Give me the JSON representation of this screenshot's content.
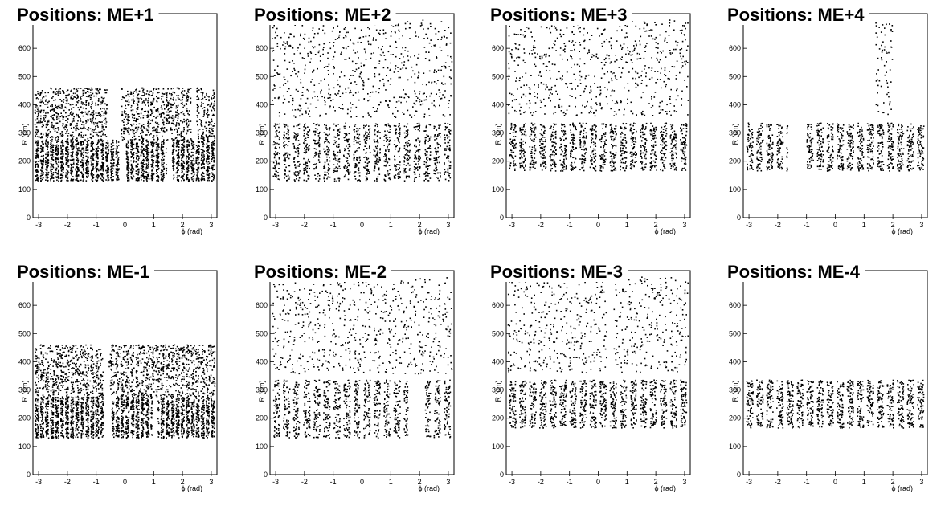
{
  "figure": {
    "background": "#ffffff",
    "marker_color": "#000000"
  },
  "chart_data": [
    {
      "type": "scatter",
      "title": "Positions: ME+1",
      "xlabel": "ϕ (rad)",
      "ylabel": "R (cm)",
      "xlim": [
        -3.14159,
        3.14159
      ],
      "ylim": [
        0,
        700
      ],
      "xticks": [
        -3,
        -2,
        -1,
        0,
        1,
        2,
        3
      ],
      "yticks": [
        0,
        100,
        200,
        300,
        400,
        500,
        600
      ],
      "rings": [
        {
          "rmin": 130,
          "rmax": 275,
          "nchambers": 36,
          "phi_gaps": [
            [
              -0.2,
              0.05
            ],
            [
              1.45,
              1.65
            ]
          ]
        },
        {
          "rmin": 275,
          "rmax": 460,
          "nchambers": 36,
          "phi_gaps": [
            [
              -0.62,
              -0.12
            ],
            [
              2.3,
              2.5
            ]
          ]
        }
      ]
    },
    {
      "type": "scatter",
      "title": "Positions: ME+2",
      "xlabel": "ϕ (rad)",
      "ylabel": "R (cm)",
      "xlim": [
        -3.14159,
        3.14159
      ],
      "ylim": [
        0,
        700
      ],
      "xticks": [
        -3,
        -2,
        -1,
        0,
        1,
        2,
        3
      ],
      "yticks": [
        0,
        100,
        200,
        300,
        400,
        500,
        600
      ],
      "rings": [
        {
          "rmin": 130,
          "rmax": 335,
          "nchambers": 18,
          "phi_gaps": []
        },
        {
          "rmin": 355,
          "rmax": 700,
          "nchambers": 36,
          "phi_gaps": []
        }
      ]
    },
    {
      "type": "scatter",
      "title": "Positions: ME+3",
      "xlabel": "ϕ (rad)",
      "ylabel": "R (cm)",
      "xlim": [
        -3.14159,
        3.14159
      ],
      "ylim": [
        0,
        700
      ],
      "xticks": [
        -3,
        -2,
        -1,
        0,
        1,
        2,
        3
      ],
      "yticks": [
        0,
        100,
        200,
        300,
        400,
        500,
        600
      ],
      "rings": [
        {
          "rmin": 165,
          "rmax": 335,
          "nchambers": 18,
          "phi_gaps": []
        },
        {
          "rmin": 360,
          "rmax": 700,
          "nchambers": 36,
          "phi_gaps": []
        }
      ]
    },
    {
      "type": "scatter",
      "title": "Positions: ME+4",
      "xlabel": "ϕ (rad)",
      "ylabel": "R (cm)",
      "xlim": [
        -3.14159,
        3.14159
      ],
      "ylim": [
        0,
        700
      ],
      "xticks": [
        -3,
        -2,
        -1,
        0,
        1,
        2,
        3
      ],
      "yticks": [
        0,
        100,
        200,
        300,
        400,
        500,
        600
      ],
      "rings": [
        {
          "rmin": 165,
          "rmax": 335,
          "nchambers": 18,
          "phi_gaps": [
            [
              -1.65,
              -1.05
            ]
          ]
        },
        {
          "rmin": 360,
          "rmax": 700,
          "nchambers": 36,
          "phi_gaps": [],
          "phi_range": [
            1.4,
            2.0
          ]
        }
      ]
    },
    {
      "type": "scatter",
      "title": "Positions: ME-1",
      "xlabel": "ϕ (rad)",
      "ylabel": "R (cm)",
      "xlim": [
        -3.14159,
        3.14159
      ],
      "ylim": [
        0,
        700
      ],
      "xticks": [
        -3,
        -2,
        -1,
        0,
        1,
        2,
        3
      ],
      "yticks": [
        0,
        100,
        200,
        300,
        400,
        500,
        600
      ],
      "rings": [
        {
          "rmin": 130,
          "rmax": 275,
          "nchambers": 36,
          "phi_gaps": [
            [
              -0.75,
              -0.45
            ],
            [
              0.95,
              1.15
            ]
          ]
        },
        {
          "rmin": 275,
          "rmax": 460,
          "nchambers": 36,
          "phi_gaps": [
            [
              -0.75,
              -0.55
            ]
          ]
        }
      ]
    },
    {
      "type": "scatter",
      "title": "Positions: ME-2",
      "xlabel": "ϕ (rad)",
      "ylabel": "R (cm)",
      "xlim": [
        -3.14159,
        3.14159
      ],
      "ylim": [
        0,
        700
      ],
      "xticks": [
        -3,
        -2,
        -1,
        0,
        1,
        2,
        3
      ],
      "yticks": [
        0,
        100,
        200,
        300,
        400,
        500,
        600
      ],
      "rings": [
        {
          "rmin": 130,
          "rmax": 335,
          "nchambers": 18,
          "phi_gaps": [
            [
              1.6,
              2.2
            ]
          ]
        },
        {
          "rmin": 355,
          "rmax": 700,
          "nchambers": 36,
          "phi_gaps": []
        }
      ]
    },
    {
      "type": "scatter",
      "title": "Positions: ME-3",
      "xlabel": "ϕ (rad)",
      "ylabel": "R (cm)",
      "xlim": [
        -3.14159,
        3.14159
      ],
      "ylim": [
        0,
        700
      ],
      "xticks": [
        -3,
        -2,
        -1,
        0,
        1,
        2,
        3
      ],
      "yticks": [
        0,
        100,
        200,
        300,
        400,
        500,
        600
      ],
      "rings": [
        {
          "rmin": 165,
          "rmax": 335,
          "nchambers": 18,
          "phi_gaps": []
        },
        {
          "rmin": 360,
          "rmax": 700,
          "nchambers": 36,
          "phi_gaps": [
            [
              0.3,
              0.55
            ]
          ]
        }
      ]
    },
    {
      "type": "scatter",
      "title": "Positions: ME-4",
      "xlabel": "ϕ (rad)",
      "ylabel": "R (cm)",
      "xlim": [
        -3.14159,
        3.14159
      ],
      "ylim": [
        0,
        700
      ],
      "xticks": [
        -3,
        -2,
        -1,
        0,
        1,
        2,
        3
      ],
      "yticks": [
        0,
        100,
        200,
        300,
        400,
        500,
        600
      ],
      "rings": [
        {
          "rmin": 165,
          "rmax": 335,
          "nchambers": 18,
          "phi_gaps": []
        }
      ]
    }
  ]
}
